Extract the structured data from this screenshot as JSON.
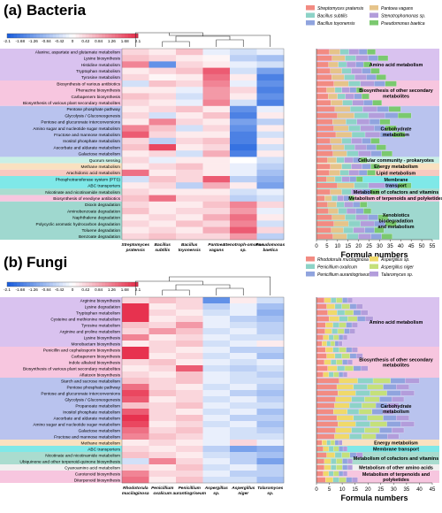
{
  "chart_data": [
    {
      "type": "heatmap",
      "panel_label": "(a)",
      "title": "Bacteria",
      "colorbar_ticks": [
        "-2.1",
        "-1.68",
        "-1.26",
        "-0.84",
        "-0.42",
        "0",
        "0.42",
        "0.84",
        "1.26",
        "1.68",
        "2.1"
      ],
      "columns": [
        "Streptomyces pratensis",
        "Bacillus subtilis",
        "Bacillus toyonensis",
        "Pantoea vagans",
        "Stenotroph-omonas sp.",
        "Pseudomonas baetica"
      ],
      "legend": [
        "Streptomyces pratensis",
        "Pantoea vagans",
        "Bacillus subtilis",
        "Stenotrophomonas sp.",
        "Bacillus toyonensis",
        "Pseudomonas baetica"
      ],
      "legend_colors": [
        "#f28b82",
        "#e6c48a",
        "#8dd3c7",
        "#b39ddb",
        "#90a4de",
        "#7bc96f"
      ],
      "rows": [
        "Alanine, aspartate and glutamate metabolism",
        "Lysine biosynthesis",
        "Histidine metabolism",
        "Tryptophan metabolism",
        "Tyrosine metabolism",
        "Biosynthesis of various antibiotics",
        "Phenazine biosynthesis",
        "Carbapenem biosynthesis",
        "Biosynthesis of various plant secondary metabolites",
        "Pentose phosphate pathway",
        "Glycolysis / Gluconeogenesis",
        "Pentose and glucuronate interconversions",
        "Amino sugar and nucleotide sugar metabolism",
        "Fructose and mannose metabolism",
        "Inositol phosphate metabolism",
        "Ascorbate and aldarate metabolism",
        "Galactose metabolism",
        "Quorum sensing",
        "Methane metabolism",
        "Arachidonic acid metabolism",
        "Phosphotransferase system (PTS)",
        "ABC transporters",
        "Nicotinate and nicotinamide metabolism",
        "Biosynthesis of enediyne antibiotics",
        "Dioxin degradation",
        "Aminobenzoate degradation",
        "Naphthalene degradation",
        "Polycyclic aromatic hydrocarbon degradation",
        "Toluene degradation",
        "Benzoate degradation"
      ],
      "values": [
        [
          0.4,
          0.2,
          0.6,
          -0.2,
          -0.4,
          -0.2
        ],
        [
          0.6,
          0.4,
          0.2,
          0.1,
          -0.6,
          -0.8
        ],
        [
          1.2,
          -1.4,
          0.4,
          0.2,
          -0.2,
          -0.4
        ],
        [
          0.2,
          0.4,
          0.6,
          1.6,
          -0.4,
          -1.2
        ],
        [
          0.4,
          0.1,
          0.2,
          1.4,
          0.2,
          -1.6
        ],
        [
          -0.4,
          0.6,
          0.4,
          1.2,
          -0.2,
          -1.4
        ],
        [
          0.2,
          0.2,
          -0.2,
          1.0,
          0.4,
          -1.6
        ],
        [
          0.6,
          0.4,
          -0.4,
          1.0,
          0.2,
          -1.4
        ],
        [
          0.4,
          0.2,
          -0.2,
          1.2,
          -0.4,
          -1.6
        ],
        [
          0.2,
          0.4,
          0.6,
          0.2,
          -1.4,
          -0.2
        ],
        [
          0.4,
          -0.4,
          0.2,
          0.6,
          -1.6,
          0.2
        ],
        [
          0.2,
          1.2,
          0.4,
          0.2,
          -1.2,
          -0.6
        ],
        [
          1.2,
          0.6,
          -0.4,
          0.4,
          -1.4,
          0.2
        ],
        [
          1.6,
          0.4,
          0.2,
          0.2,
          -1.6,
          -0.4
        ],
        [
          0.4,
          -0.6,
          0.4,
          0.6,
          -1.6,
          0.2
        ],
        [
          0.6,
          1.8,
          0.2,
          0.4,
          -1.8,
          -0.4
        ],
        [
          0.2,
          0.4,
          -0.4,
          0.8,
          -1.6,
          0.2
        ],
        [
          0.4,
          -0.2,
          0.2,
          0.2,
          0.0,
          -0.4
        ],
        [
          0.2,
          0.4,
          0.6,
          0.2,
          -0.2,
          -0.6
        ],
        [
          1.4,
          0.2,
          0.4,
          0.2,
          -0.2,
          -0.8
        ],
        [
          -0.4,
          0.6,
          0.4,
          1.6,
          -0.6,
          -1.0
        ],
        [
          0.2,
          0.4,
          -0.6,
          0.8,
          0.2,
          -1.2
        ],
        [
          0.4,
          0.2,
          0.2,
          0.2,
          -0.4,
          -0.2
        ],
        [
          0.6,
          1.4,
          0.4,
          0.4,
          -0.6,
          -0.4
        ],
        [
          0.4,
          0.2,
          0.2,
          0.6,
          1.2,
          0.4
        ],
        [
          0.6,
          0.2,
          0.4,
          0.4,
          1.0,
          -0.2
        ],
        [
          0.2,
          0.4,
          0.2,
          0.8,
          1.4,
          0.2
        ],
        [
          0.4,
          0.2,
          0.6,
          0.4,
          1.2,
          -0.4
        ],
        [
          0.2,
          0.4,
          0.2,
          0.8,
          1.6,
          0.4
        ],
        [
          0.4,
          0.6,
          0.4,
          0.4,
          1.0,
          -0.6
        ]
      ],
      "category_labels": [
        "Amino acid metabolism",
        "Biosynthesis of other secondary metabolites",
        "Carbohydrate metabolism",
        "Cellular community - prokaryotes",
        "Energy metabolism",
        "Lipid metabolism",
        "Membrane transport",
        "Metabolism of cofactors and vitamins",
        "Metabolism of terpenoids and polyketides",
        "Xenobiotics biodegradation and metabolism"
      ],
      "xlabel": "Formula numbers",
      "xticks": [
        "0",
        "5",
        "10",
        "15",
        "20",
        "25",
        "30",
        "35",
        "40",
        "45",
        "50",
        "55"
      ],
      "xlim": [
        0,
        55
      ],
      "bar_totals": [
        28,
        34,
        26,
        30,
        33,
        38,
        22,
        25,
        31,
        40,
        45,
        35,
        38,
        42,
        30,
        33,
        36,
        24,
        30,
        28,
        22,
        45,
        30,
        18,
        24,
        26,
        34,
        38,
        32,
        36
      ]
    },
    {
      "type": "heatmap",
      "panel_label": "(b)",
      "title": "Fungi",
      "colorbar_ticks": [
        "-2.1",
        "-1.68",
        "-1.26",
        "-0.84",
        "-0.42",
        "0",
        "0.42",
        "0.84",
        "1.26",
        "1.68",
        "2.1"
      ],
      "columns": [
        "Rhodotorula mucilaginosa",
        "Penicillium oxalicum",
        "Penicillium aurantiogriseum",
        "Aspergillus sp.",
        "Aspergillus niger",
        "Talaromyces sp."
      ],
      "legend": [
        "Rhodotorula mucilaginosa",
        "Aspergillus sp.",
        "Penicillium oxalicum",
        "Aspergillus niger",
        "Penicillium aurantiogriseum",
        "Talaromyces sp."
      ],
      "legend_colors": [
        "#f28b82",
        "#f0d96a",
        "#8dd3c7",
        "#c5e07a",
        "#90a4de",
        "#b39ddb"
      ],
      "rows": [
        "Arginine biosynthesis",
        "Lysine degradation",
        "Tryptophan metabolism",
        "Cysteine and methionine metabolism",
        "Tyrosine metabolism",
        "Arginine and proline metabolism",
        "Lysine biosynthesis",
        "Monobactam biosynthesis",
        "Penicillin and cephalosporin biosynthesis",
        "Carbapenem biosynthesis",
        "Indole alkaloid biosynthesis",
        "Biosynthesis of various plant secondary metabolites",
        "Aflatoxin biosynthesis",
        "Starch and sucrose metabolism",
        "Pentose phosphate pathway",
        "Pentose and glucuronate interconversions",
        "Glycolysis / Gluconeogenesis",
        "Propanoate metabolism",
        "Inositol phosphate metabolism",
        "Ascorbate and aldarate metabolism",
        "Amino sugar and nucleotide sugar metabolism",
        "Galactose metabolism",
        "Fructose and mannose metabolism",
        "Methane metabolism",
        "ABC transporters",
        "Nicotinate and nicotinamide metabolism",
        "Ubiquinone and other terpenoid-quinone biosynthesis",
        "Cyanoamino acid metabolism",
        "Carotenoid biosynthesis",
        "Diterpenoid biosynthesis"
      ],
      "values": [
        [
          0.4,
          0.6,
          0.4,
          -1.4,
          0.2,
          -0.4
        ],
        [
          2.0,
          0.2,
          0.4,
          -0.6,
          -0.2,
          -0.8
        ],
        [
          2.0,
          0.4,
          0.2,
          -0.4,
          -0.2,
          -1.0
        ],
        [
          2.0,
          0.2,
          0.4,
          -0.2,
          -0.6,
          -0.8
        ],
        [
          0.6,
          0.4,
          1.0,
          -0.2,
          -0.4,
          -0.6
        ],
        [
          0.4,
          1.0,
          0.6,
          -0.4,
          -0.2,
          -0.6
        ],
        [
          1.2,
          0.2,
          0.4,
          -0.2,
          -0.4,
          -0.4
        ],
        [
          0.2,
          0.4,
          0.6,
          -0.4,
          -0.2,
          0.2
        ],
        [
          2.0,
          0.4,
          0.2,
          -0.2,
          -0.6,
          -0.6
        ],
        [
          2.0,
          0.2,
          0.4,
          -0.4,
          -0.2,
          -0.8
        ],
        [
          0.4,
          0.6,
          0.2,
          -0.2,
          -0.4,
          -0.2
        ],
        [
          0.2,
          0.4,
          1.6,
          -0.4,
          -0.6,
          -0.4
        ],
        [
          0.4,
          0.2,
          0.6,
          -0.2,
          -0.4,
          -0.6
        ],
        [
          0.6,
          0.4,
          0.6,
          -0.2,
          -0.4,
          -0.4
        ],
        [
          1.4,
          0.4,
          0.2,
          -0.4,
          -0.2,
          -0.6
        ],
        [
          1.8,
          0.6,
          0.4,
          -0.2,
          -0.6,
          -0.8
        ],
        [
          1.6,
          0.2,
          0.4,
          -0.4,
          -0.2,
          -0.6
        ],
        [
          0.6,
          0.4,
          0.6,
          -0.2,
          -0.4,
          -0.4
        ],
        [
          1.6,
          0.4,
          0.2,
          -0.4,
          -0.2,
          -0.8
        ],
        [
          2.0,
          0.4,
          0.6,
          -0.2,
          -0.6,
          -0.6
        ],
        [
          1.8,
          0.2,
          0.4,
          -0.4,
          -0.2,
          -0.8
        ],
        [
          1.4,
          0.4,
          0.6,
          -0.2,
          -0.4,
          -0.6
        ],
        [
          1.2,
          0.6,
          0.4,
          -0.2,
          -0.4,
          -0.4
        ],
        [
          0.2,
          0.4,
          0.2,
          -0.2,
          0.4,
          -0.2
        ],
        [
          0.4,
          0.2,
          0.4,
          -0.6,
          -1.2,
          -1.0
        ],
        [
          0.6,
          0.4,
          0.2,
          -0.4,
          -0.6,
          -0.8
        ],
        [
          -0.4,
          1.2,
          0.4,
          -0.2,
          -0.6,
          -1.2
        ],
        [
          0.4,
          0.2,
          0.6,
          -0.4,
          -0.2,
          -0.6
        ],
        [
          1.2,
          0.4,
          0.4,
          -0.2,
          -0.6,
          -0.6
        ],
        [
          1.4,
          0.2,
          0.6,
          -0.4,
          -0.4,
          -0.8
        ]
      ],
      "category_labels": [
        "Amino acid metabolism",
        "Biosynthesis of other secondary metabolites",
        "Carbohydrate metabolism",
        "Energy metabolism",
        "Membrane transport",
        "Metabolism of cofactors and vitamins",
        "Metabolism of other amino acids",
        "Metabolism of terpenoids and polyketides"
      ],
      "xlabel": "Formula numbers",
      "xticks": [
        "0",
        "5",
        "10",
        "15",
        "20",
        "25",
        "30",
        "35",
        "40",
        "45"
      ],
      "xlim": [
        0,
        45
      ],
      "bar_totals": [
        14,
        18,
        20,
        22,
        16,
        15,
        12,
        10,
        16,
        18,
        14,
        20,
        12,
        40,
        36,
        38,
        34,
        32,
        30,
        36,
        38,
        34,
        32,
        10,
        12,
        18,
        14,
        14,
        12,
        16
      ]
    }
  ]
}
